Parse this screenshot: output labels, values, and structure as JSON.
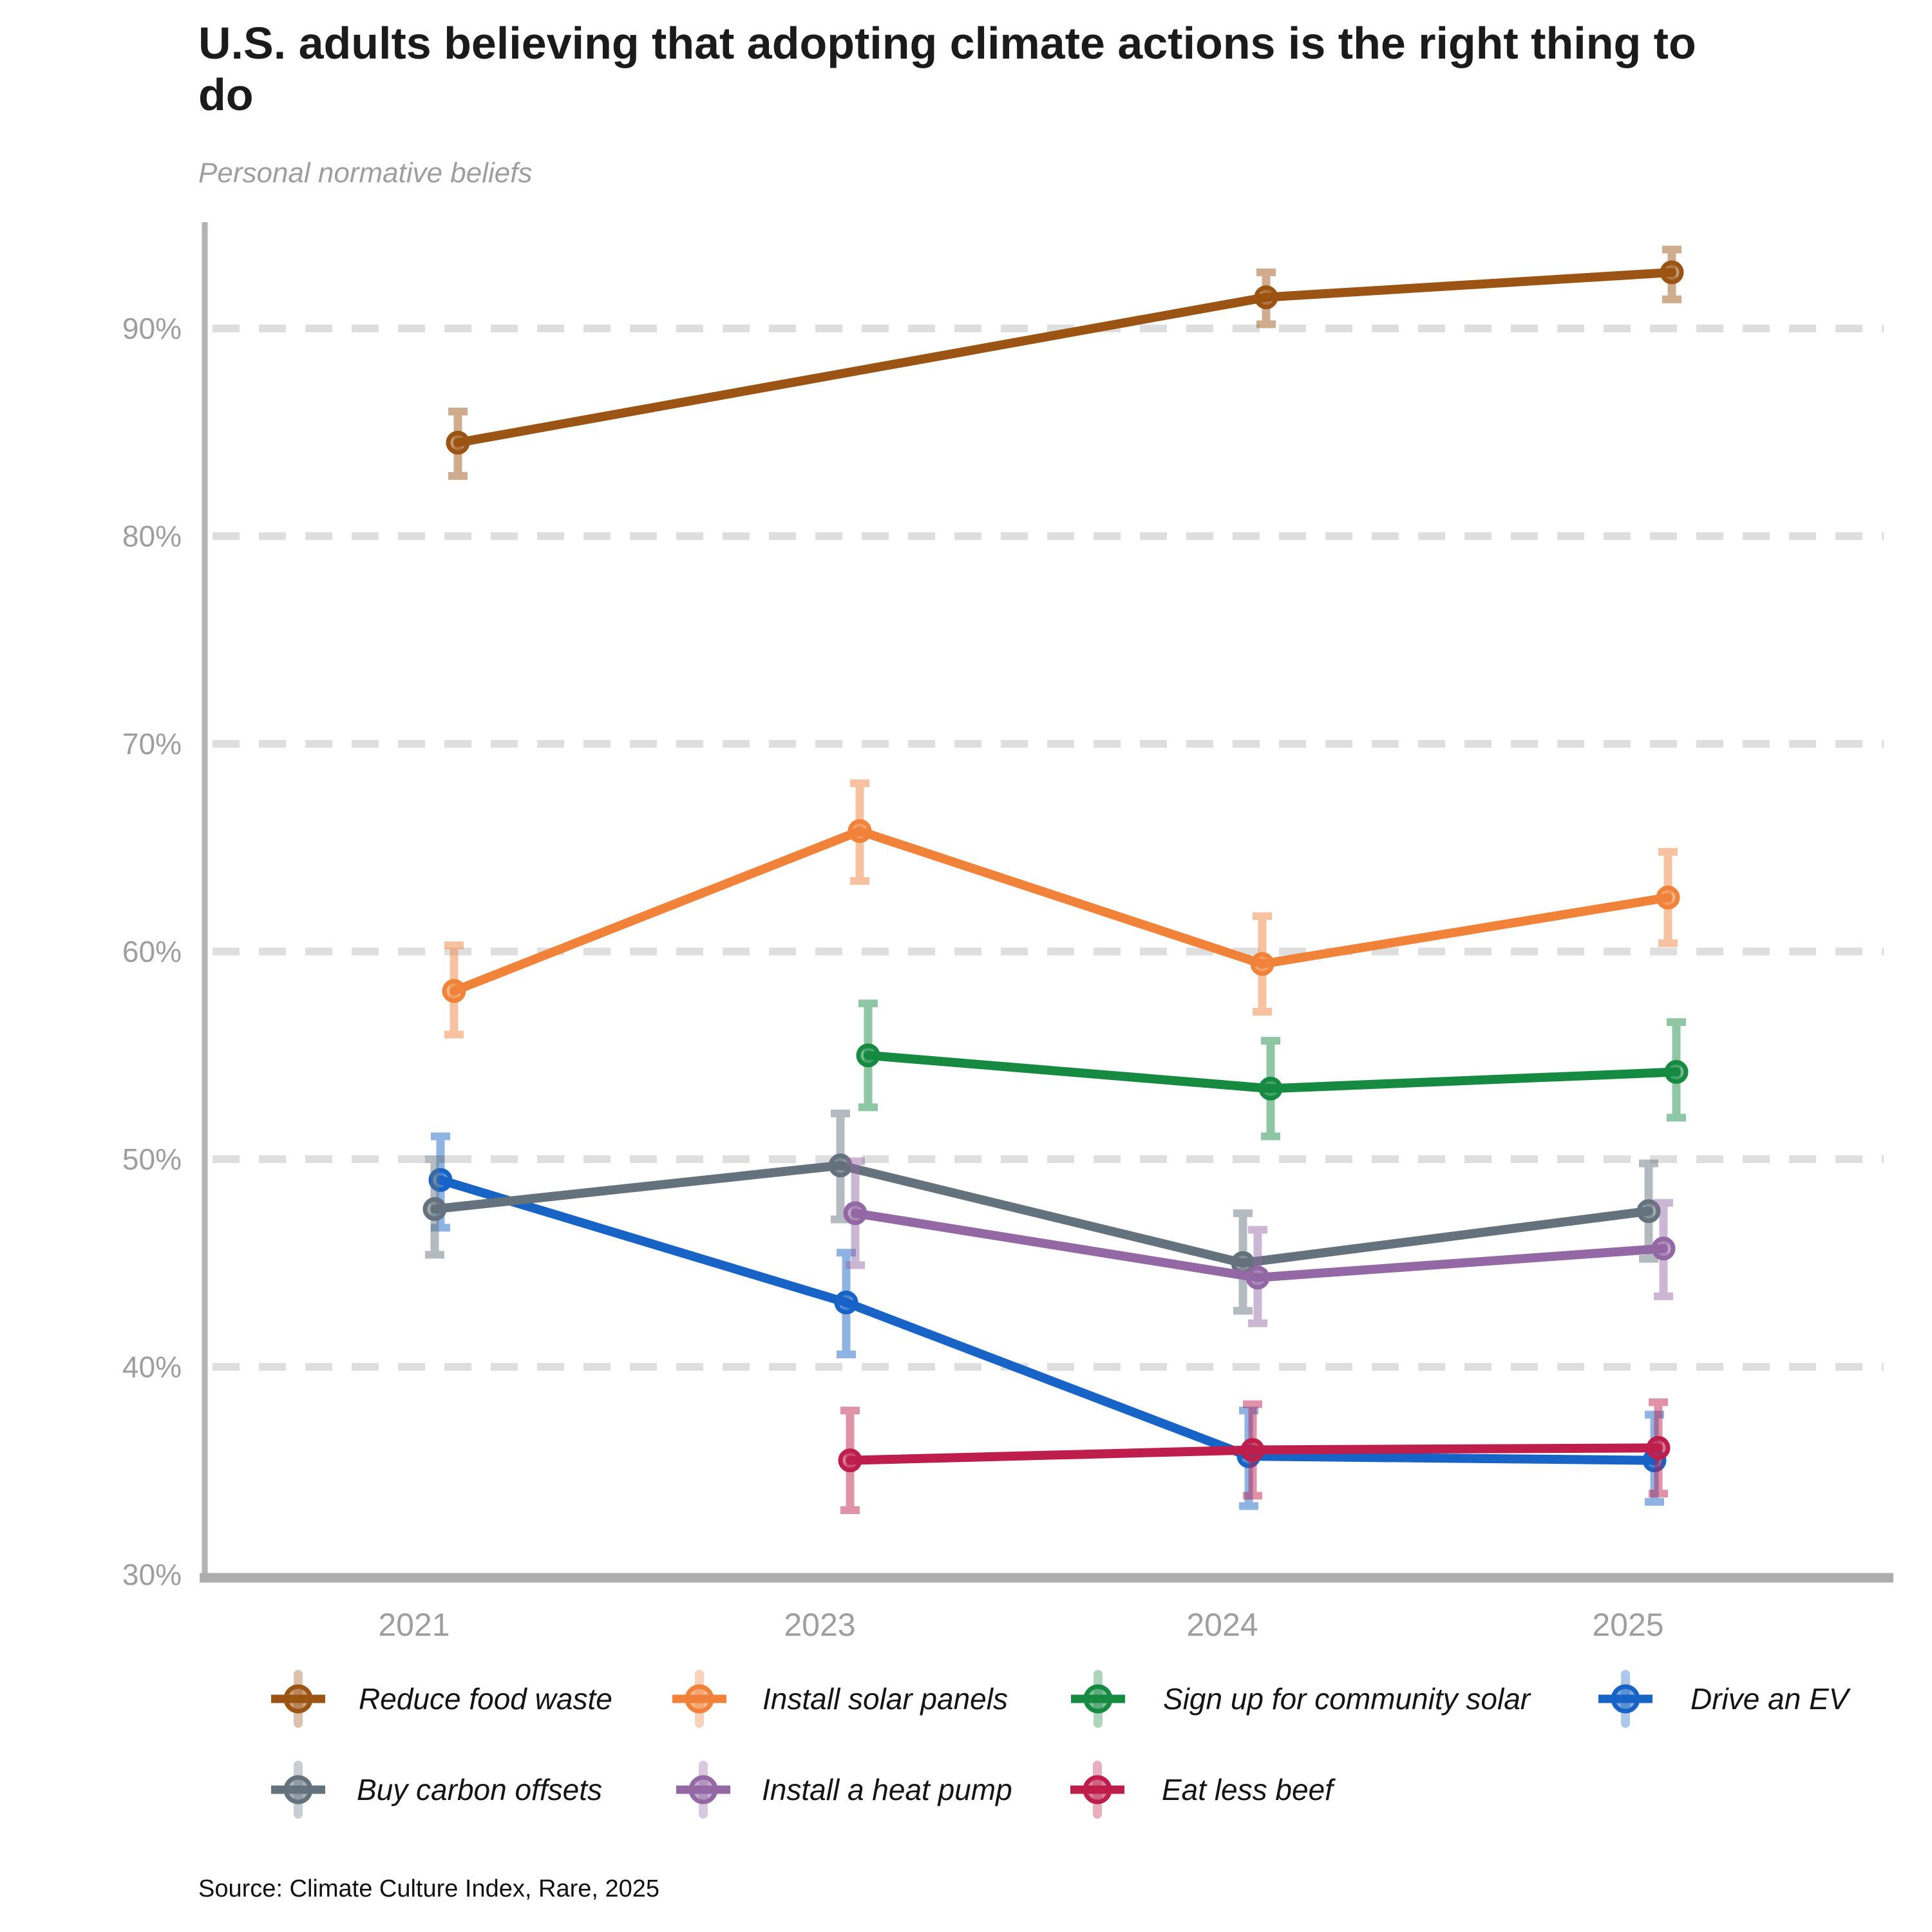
{
  "header": {
    "title": "U.S. adults believing that adopting climate actions is the right thing to do",
    "subtitle": "Personal normative beliefs"
  },
  "footer": {
    "source": "Source: Climate Culture Index, Rare, 2025"
  },
  "chart_data": {
    "type": "line",
    "x_categories": [
      "2021",
      "2023",
      "2024",
      "2025"
    ],
    "ylabel": "",
    "ylim": [
      30,
      95
    ],
    "yticks": [
      30,
      40,
      50,
      60,
      70,
      80,
      90
    ],
    "ytick_labels": [
      "30%",
      "40%",
      "50%",
      "60%",
      "70%",
      "80%",
      "90%"
    ],
    "grid": "horizontal-dashed",
    "legend_position": "bottom",
    "error_bars": "95% confidence intervals",
    "series": [
      {
        "name": "Reduce food waste",
        "color": "#9B5413",
        "points": [
          {
            "x": "2021",
            "y": 84.5,
            "lo": 82.9,
            "hi": 86.0
          },
          {
            "x": "2024",
            "y": 91.5,
            "lo": 90.2,
            "hi": 92.7
          },
          {
            "x": "2025",
            "y": 92.7,
            "lo": 91.4,
            "hi": 93.8
          }
        ]
      },
      {
        "name": "Install solar panels",
        "color": "#F0823A",
        "points": [
          {
            "x": "2021",
            "y": 58.1,
            "lo": 56.0,
            "hi": 60.3
          },
          {
            "x": "2023",
            "y": 65.8,
            "lo": 63.4,
            "hi": 68.1
          },
          {
            "x": "2024",
            "y": 59.4,
            "lo": 57.1,
            "hi": 61.7
          },
          {
            "x": "2025",
            "y": 62.6,
            "lo": 60.4,
            "hi": 64.8
          }
        ]
      },
      {
        "name": "Sign up for community solar",
        "color": "#178A42",
        "points": [
          {
            "x": "2023",
            "y": 55.0,
            "lo": 52.5,
            "hi": 57.5
          },
          {
            "x": "2024",
            "y": 53.4,
            "lo": 51.1,
            "hi": 55.7
          },
          {
            "x": "2025",
            "y": 54.2,
            "lo": 52.0,
            "hi": 56.6
          }
        ]
      },
      {
        "name": "Drive an EV",
        "color": "#1763C6",
        "points": [
          {
            "x": "2021",
            "y": 49.0,
            "lo": 46.7,
            "hi": 51.1
          },
          {
            "x": "2023",
            "y": 43.1,
            "lo": 40.6,
            "hi": 45.5
          },
          {
            "x": "2024",
            "y": 35.7,
            "lo": 33.3,
            "hi": 37.9
          },
          {
            "x": "2025",
            "y": 35.5,
            "lo": 33.5,
            "hi": 37.7
          }
        ]
      },
      {
        "name": "Buy carbon offsets",
        "color": "#64727D",
        "points": [
          {
            "x": "2021",
            "y": 47.6,
            "lo": 45.4,
            "hi": 50.0
          },
          {
            "x": "2023",
            "y": 49.7,
            "lo": 47.1,
            "hi": 52.2
          },
          {
            "x": "2024",
            "y": 45.0,
            "lo": 42.7,
            "hi": 47.4
          },
          {
            "x": "2025",
            "y": 47.5,
            "lo": 45.2,
            "hi": 49.8
          }
        ]
      },
      {
        "name": "Install a heat pump",
        "color": "#9368A4",
        "points": [
          {
            "x": "2023",
            "y": 47.4,
            "lo": 44.9,
            "hi": 49.9
          },
          {
            "x": "2024",
            "y": 44.3,
            "lo": 42.1,
            "hi": 46.6
          },
          {
            "x": "2025",
            "y": 45.7,
            "lo": 43.4,
            "hi": 47.9
          }
        ]
      },
      {
        "name": "Eat less beef",
        "color": "#BE1E4B",
        "points": [
          {
            "x": "2023",
            "y": 35.5,
            "lo": 33.1,
            "hi": 37.9
          },
          {
            "x": "2024",
            "y": 36.0,
            "lo": 33.8,
            "hi": 38.2
          },
          {
            "x": "2025",
            "y": 36.1,
            "lo": 33.9,
            "hi": 38.3
          }
        ]
      }
    ]
  }
}
